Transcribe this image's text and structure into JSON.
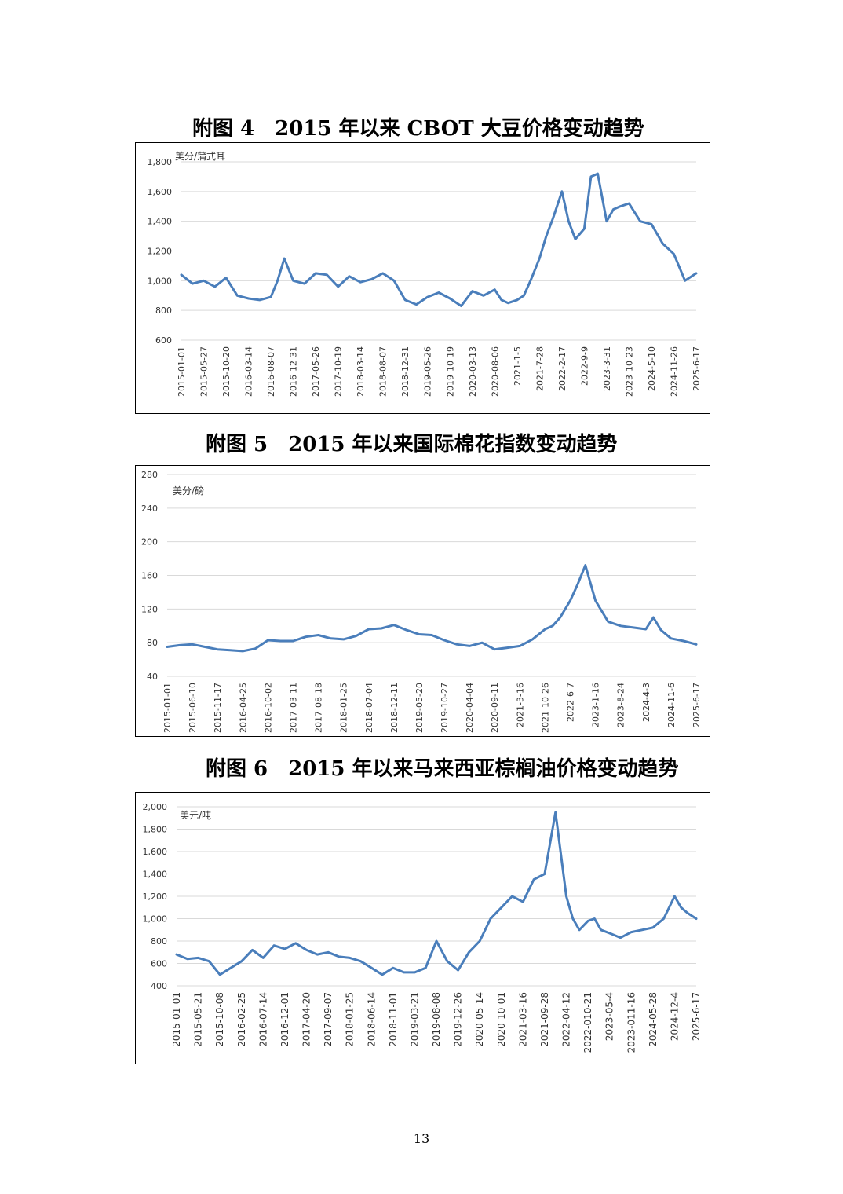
{
  "page": {
    "number": "13"
  },
  "chart_data": [
    {
      "type": "line",
      "title": "附图 4　2015 年以来 CBOT 大豆价格变动趋势",
      "unit_label": "美分/蒲式耳",
      "ylim": [
        600,
        1800
      ],
      "yticks": [
        600,
        800,
        1000,
        1200,
        1400,
        1600,
        1800
      ],
      "ytick_labels": [
        "600",
        "800",
        "1,000",
        "1,200",
        "1,400",
        "1,600",
        "1,800"
      ],
      "grid": true,
      "color": "#4a7ebb",
      "xtick_labels": [
        "2015-01-01",
        "2015-05-27",
        "2015-10-20",
        "2016-03-14",
        "2016-08-07",
        "2016-12-31",
        "2017-05-26",
        "2017-10-19",
        "2018-03-14",
        "2018-08-07",
        "2018-12-31",
        "2019-05-26",
        "2019-10-19",
        "2020-03-13",
        "2020-08-06",
        "2021-1-5",
        "2021-7-28",
        "2022-2-17",
        "2022-9-9",
        "2023-3-31",
        "2023-10-23",
        "2024-5-10",
        "2024-11-26",
        "2025-6-17"
      ],
      "series": [
        {
          "x": [
            0,
            0.5,
            1,
            1.5,
            2,
            2.5,
            3,
            3.5,
            4,
            4.3,
            4.6,
            5,
            5.5,
            6,
            6.5,
            7,
            7.5,
            8,
            8.5,
            9,
            9.5,
            10,
            10.5,
            11,
            11.5,
            12,
            12.5,
            13,
            13.5,
            14,
            14.3,
            14.6,
            15,
            15.3,
            15.6,
            16,
            16.3,
            16.6,
            17,
            17.3,
            17.6,
            18,
            18.3,
            18.6,
            19,
            19.3,
            19.6,
            20,
            20.5,
            21,
            21.5,
            22,
            22.5,
            23
          ],
          "y": [
            1040,
            980,
            1000,
            960,
            1020,
            900,
            880,
            870,
            890,
            1000,
            1150,
            1000,
            980,
            1050,
            1040,
            960,
            1030,
            990,
            1010,
            1050,
            1000,
            870,
            840,
            890,
            920,
            880,
            830,
            930,
            900,
            940,
            870,
            850,
            870,
            900,
            1000,
            1150,
            1300,
            1420,
            1600,
            1400,
            1280,
            1350,
            1700,
            1720,
            1400,
            1480,
            1500,
            1520,
            1400,
            1380,
            1250,
            1180,
            1000,
            1050
          ]
        }
      ]
    },
    {
      "type": "line",
      "title": "附图 5　2015 年以来国际棉花指数变动趋势",
      "unit_label": "美分/磅",
      "ylim": [
        40,
        280
      ],
      "yticks": [
        40,
        80,
        120,
        160,
        200,
        240,
        280
      ],
      "ytick_labels": [
        "40",
        "80",
        "120",
        "160",
        "200",
        "240",
        "280"
      ],
      "grid": true,
      "color": "#4a7ebb",
      "xtick_labels": [
        "2015-01-01",
        "2015-06-10",
        "2015-11-17",
        "2016-04-25",
        "2016-10-02",
        "2017-03-11",
        "2017-08-18",
        "2018-01-25",
        "2018-07-04",
        "2018-12-11",
        "2019-05-20",
        "2019-10-27",
        "2020-04-04",
        "2020-09-11",
        "2021-3-16",
        "2021-10-26",
        "2022-6-7",
        "2023-1-16",
        "2023-8-24",
        "2024-4-3",
        "2024-11-6",
        "2025-6-17"
      ],
      "series": [
        {
          "x": [
            0,
            0.5,
            1,
            1.5,
            2,
            2.5,
            3,
            3.5,
            4,
            4.5,
            5,
            5.5,
            6,
            6.5,
            7,
            7.5,
            8,
            8.5,
            9,
            9.5,
            10,
            10.5,
            11,
            11.5,
            12,
            12.5,
            13,
            13.5,
            14,
            14.5,
            15,
            15.3,
            15.6,
            16,
            16.3,
            16.6,
            17,
            17.5,
            18,
            18.5,
            19,
            19.3,
            19.6,
            20,
            20.5,
            21
          ],
          "y": [
            75,
            77,
            78,
            75,
            72,
            71,
            70,
            73,
            83,
            82,
            82,
            87,
            89,
            85,
            84,
            88,
            96,
            97,
            101,
            95,
            90,
            89,
            83,
            78,
            76,
            80,
            72,
            74,
            76,
            84,
            96,
            100,
            110,
            130,
            150,
            172,
            130,
            105,
            100,
            98,
            96,
            110,
            95,
            85,
            82,
            78
          ]
        }
      ]
    },
    {
      "type": "line",
      "title": "附图 6　2015 年以来马来西亚棕榈油价格变动趋势",
      "unit_label": "美元/吨",
      "ylim": [
        400,
        2000
      ],
      "yticks": [
        400,
        600,
        800,
        1000,
        1200,
        1400,
        1600,
        1800,
        2000
      ],
      "ytick_labels": [
        "400",
        "600",
        "800",
        "1,000",
        "1,200",
        "1,400",
        "1,600",
        "1,800",
        "2,000"
      ],
      "grid": true,
      "color": "#4a7ebb",
      "xtick_labels": [
        "2015-01-01",
        "2015-05-21",
        "2015-10-08",
        "2016-02-25",
        "2016-07-14",
        "2016-12-01",
        "2017-04-20",
        "2017-09-07",
        "2018-01-25",
        "2018-06-14",
        "2018-11-01",
        "2019-03-21",
        "2019-08-08",
        "2019-12-26",
        "2020-05-14",
        "2020-10-01",
        "2021-03-16",
        "2021-09-28",
        "2022-04-12",
        "2022-010-21",
        "2023-05-4",
        "2023-011-16",
        "2024-05-28",
        "2024-12-4",
        "2025-6-17"
      ],
      "series": [
        {
          "x": [
            0,
            0.5,
            1,
            1.5,
            2,
            2.5,
            3,
            3.5,
            4,
            4.5,
            5,
            5.5,
            6,
            6.5,
            7,
            7.5,
            8,
            8.5,
            9,
            9.5,
            10,
            10.5,
            11,
            11.5,
            12,
            12.5,
            13,
            13.5,
            14,
            14.5,
            15,
            15.5,
            16,
            16.5,
            17,
            17.5,
            18,
            18.3,
            18.6,
            19,
            19.3,
            19.6,
            20,
            20.5,
            21,
            21.5,
            22,
            22.5,
            23,
            23.3,
            23.6,
            24
          ],
          "y": [
            680,
            640,
            650,
            620,
            500,
            560,
            620,
            720,
            650,
            760,
            730,
            780,
            720,
            680,
            700,
            660,
            650,
            620,
            560,
            500,
            560,
            520,
            520,
            560,
            800,
            620,
            540,
            700,
            800,
            1000,
            1100,
            1200,
            1150,
            1350,
            1400,
            1950,
            1200,
            1000,
            900,
            980,
            1000,
            900,
            870,
            830,
            880,
            900,
            920,
            1000,
            1200,
            1100,
            1050,
            1000
          ]
        }
      ]
    }
  ]
}
